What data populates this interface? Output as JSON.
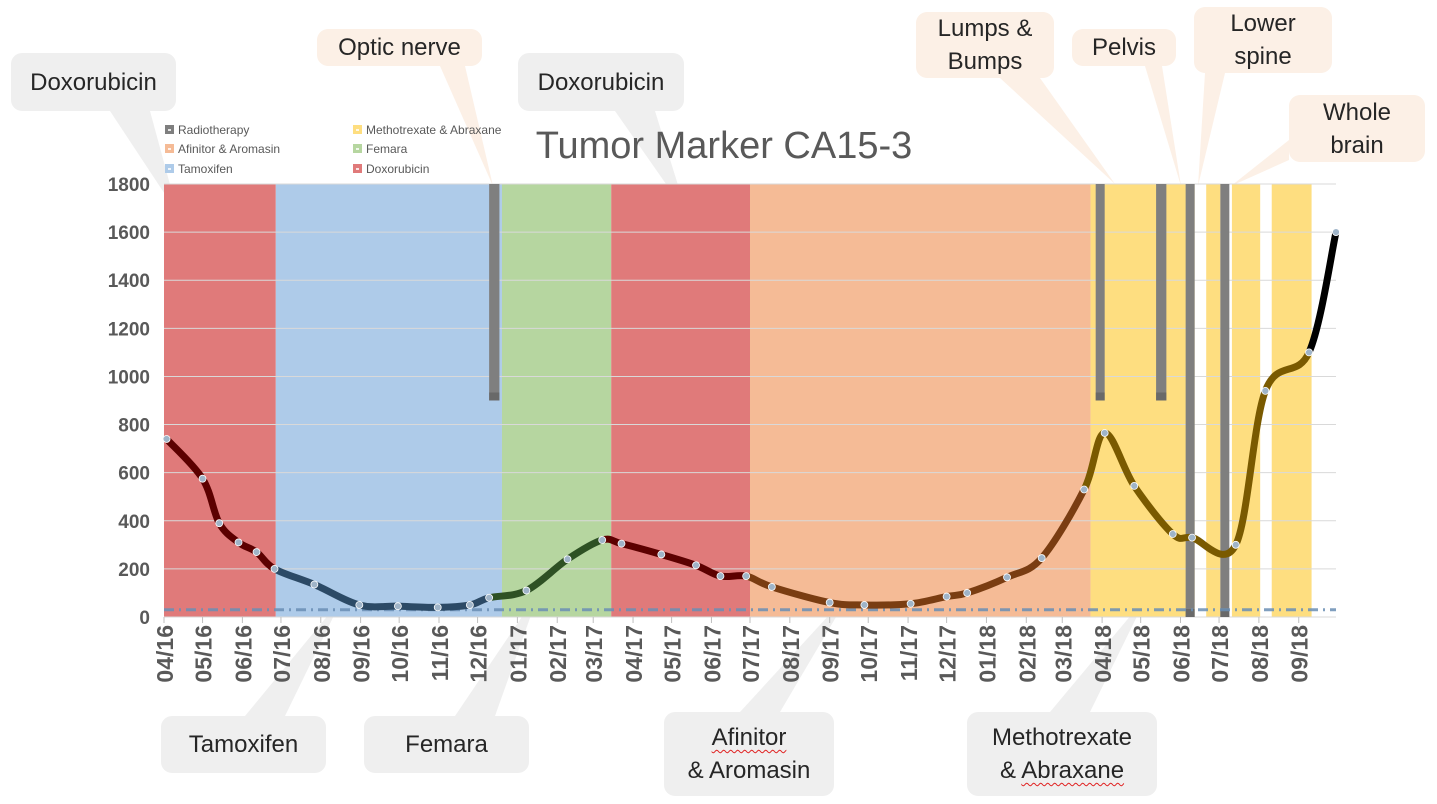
{
  "colors": {
    "Doxorubicin": "#e07a7a",
    "Tamoxifen": "#aecbe9",
    "Femara": "#b6d6a0",
    "Afinitor & Aromasin": "#f5bb96",
    "Methotrexate & Abraxane": "#fede80",
    "Radiotherapy": "#7f7f7f"
  },
  "chart_data": {
    "type": "line",
    "title": "Tumor Marker CA15-3",
    "xlabel": "",
    "ylabel": "",
    "ylim": [
      0,
      1800
    ],
    "yticks": [
      0,
      200,
      400,
      600,
      800,
      1000,
      1200,
      1400,
      1600,
      1800
    ],
    "grid": true,
    "legend_position": "top-left",
    "xlim": [
      "2016-04",
      "2018-09-30"
    ],
    "x_tick_labels": [
      "04/16",
      "05/16",
      "06/16",
      "07/16",
      "08/16",
      "09/16",
      "10/16",
      "11/16",
      "12/16",
      "01/17",
      "02/17",
      "03/17",
      "04/17",
      "05/17",
      "06/17",
      "07/17",
      "08/17",
      "09/17",
      "10/17",
      "11/17",
      "12/17",
      "01/18",
      "02/18",
      "03/18",
      "04/18",
      "05/18",
      "06/18",
      "07/18",
      "08/18",
      "09/18"
    ],
    "legend": [
      "Radiotherapy",
      "Methotrexate & Abraxane",
      "Afinitor & Aromasin",
      "Femara",
      "Tamoxifen",
      "Doxorubicin"
    ],
    "treatment_periods": [
      {
        "treatment": "Doxorubicin",
        "start": "2016-04-01",
        "end": "2016-06-27"
      },
      {
        "treatment": "Tamoxifen",
        "start": "2016-06-27",
        "end": "2016-12-20"
      },
      {
        "treatment": "Femara",
        "start": "2016-12-20",
        "end": "2017-03-15"
      },
      {
        "treatment": "Doxorubicin",
        "start": "2017-03-15",
        "end": "2017-07-01"
      },
      {
        "treatment": "Afinitor & Aromasin",
        "start": "2017-07-01",
        "end": "2018-03-23"
      },
      {
        "treatment": "Methotrexate & Abraxane",
        "start": "2018-03-23",
        "end": "2018-06-12"
      },
      {
        "treatment": "Methotrexate & Abraxane",
        "start": "2018-06-21",
        "end": "2018-07-02"
      },
      {
        "treatment": "Methotrexate & Abraxane",
        "start": "2018-07-11",
        "end": "2018-08-02"
      },
      {
        "treatment": "Methotrexate & Abraxane",
        "start": "2018-08-11",
        "end": "2018-09-11"
      }
    ],
    "radiotherapy": [
      {
        "start": "2016-12-10",
        "end": "2016-12-18",
        "top": 1800,
        "bottom": 900
      },
      {
        "start": "2018-03-27",
        "end": "2018-04-03",
        "top": 1800,
        "bottom": 900
      },
      {
        "start": "2018-05-13",
        "end": "2018-05-21",
        "top": 1800,
        "bottom": 900
      },
      {
        "start": "2018-06-05",
        "end": "2018-06-12",
        "top": 1800,
        "bottom": 0
      },
      {
        "start": "2018-07-02",
        "end": "2018-07-09",
        "top": 1800,
        "bottom": 0
      }
    ],
    "reference_line": {
      "y": 30
    },
    "series": [
      {
        "values": [
          [
            "2016-04-03",
            740
          ],
          [
            "2016-05-01",
            575
          ],
          [
            "2016-05-14",
            390
          ],
          [
            "2016-05-29",
            310
          ],
          [
            "2016-06-12",
            270
          ],
          [
            "2016-06-26",
            200
          ],
          [
            "2016-07-27",
            135
          ],
          [
            "2016-08-31",
            50
          ],
          [
            "2016-09-30",
            45
          ],
          [
            "2016-10-31",
            40
          ],
          [
            "2016-11-25",
            50
          ],
          [
            "2016-12-10",
            80
          ],
          [
            "2017-01-08",
            110
          ],
          [
            "2017-02-09",
            240
          ],
          [
            "2017-03-08",
            320
          ],
          [
            "2017-03-23",
            305
          ],
          [
            "2017-04-23",
            260
          ],
          [
            "2017-05-20",
            215
          ],
          [
            "2017-06-08",
            170
          ],
          [
            "2017-06-28",
            170
          ],
          [
            "2017-07-18",
            125
          ],
          [
            "2017-09-01",
            60
          ],
          [
            "2017-09-28",
            50
          ],
          [
            "2017-11-03",
            55
          ],
          [
            "2017-12-01",
            85
          ],
          [
            "2017-12-17",
            100
          ],
          [
            "2018-01-17",
            165
          ],
          [
            "2018-02-13",
            245
          ],
          [
            "2018-03-18",
            530
          ],
          [
            "2018-04-03",
            765
          ],
          [
            "2018-04-26",
            545
          ],
          [
            "2018-05-26",
            345
          ],
          [
            "2018-06-10",
            330
          ],
          [
            "2018-07-14",
            300
          ],
          [
            "2018-08-06",
            940
          ],
          [
            "2018-09-09",
            1100
          ],
          [
            "2018-09-30",
            1600
          ]
        ]
      }
    ]
  },
  "callouts": [
    {
      "id": "doxorubicin-1",
      "text": "Doxorubicin"
    },
    {
      "id": "optic-nerve",
      "text": "Optic nerve"
    },
    {
      "id": "doxorubicin-2",
      "text": "Doxorubicin"
    },
    {
      "id": "lumps-bumps",
      "text": "Lumps &\nBumps"
    },
    {
      "id": "pelvis",
      "text": "Pelvis"
    },
    {
      "id": "lower-spine",
      "text": "Lower\nspine"
    },
    {
      "id": "whole-brain",
      "text": "Whole\nbrain"
    },
    {
      "id": "tamoxifen",
      "text": "Tamoxifen"
    },
    {
      "id": "femara",
      "text": "Femara"
    },
    {
      "id": "afinitor-aromasin",
      "line1": "Afinitor",
      "line2": "& Aromasin"
    },
    {
      "id": "methotrexate-abraxane",
      "line1": "Methotrexate",
      "line2pre": "& ",
      "line2wavy": "Abraxane"
    }
  ]
}
